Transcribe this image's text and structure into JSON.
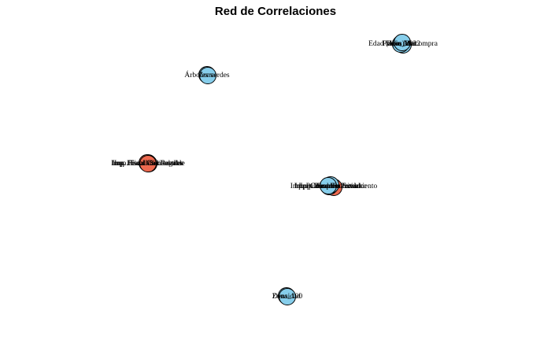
{
  "title": "Red de Correlaciones",
  "colors": {
    "node_blue": "#87ceeb",
    "node_red": "#ee6a50",
    "node_stroke": "#000000"
  },
  "clusters": [
    {
      "id": "c1",
      "nodes": [
        {
          "label": "Precio_2022",
          "color": "node_blue"
        },
        {
          "label": "Edad (años) de compra",
          "color": "node_blue"
        },
        {
          "label": "Tipo_Mat",
          "color": "node_blue"
        },
        {
          "label": "Año_Mat",
          "color": "node_blue"
        }
      ]
    },
    {
      "id": "c2",
      "nodes": [
        {
          "label": "Árboles verdes",
          "color": "node_blue"
        },
        {
          "label": "Zonas",
          "color": "node_blue"
        }
      ]
    },
    {
      "id": "c3",
      "nodes": [
        {
          "label": "Imp. Fiscalidad Regular",
          "color": "node_red"
        },
        {
          "label": "Imp. Fiscal Sociedades",
          "color": "node_red"
        },
        {
          "label": "Imp. Fiscal Dividendos",
          "color": "node_red"
        },
        {
          "label": "Imp. Fiscal Combustible",
          "color": "node_red"
        }
      ]
    },
    {
      "id": "c4",
      "nodes": [
        {
          "label": "Imp. Publico Financiamiento",
          "color": "node_red"
        },
        {
          "label": "Imp. Prod. Industrial",
          "color": "node_blue"
        },
        {
          "label": "Imp. Consumo Privado",
          "color": "node_blue"
        },
        {
          "label": "Imp. Comercio Exterior",
          "color": "node_blue"
        },
        {
          "label": "Imp. Empleo Total",
          "color": "node_blue"
        }
      ]
    },
    {
      "id": "c5",
      "nodes": [
        {
          "label": "Densidad",
          "color": "node_blue"
        },
        {
          "label": "Zona_100",
          "color": "node_blue"
        }
      ]
    }
  ]
}
